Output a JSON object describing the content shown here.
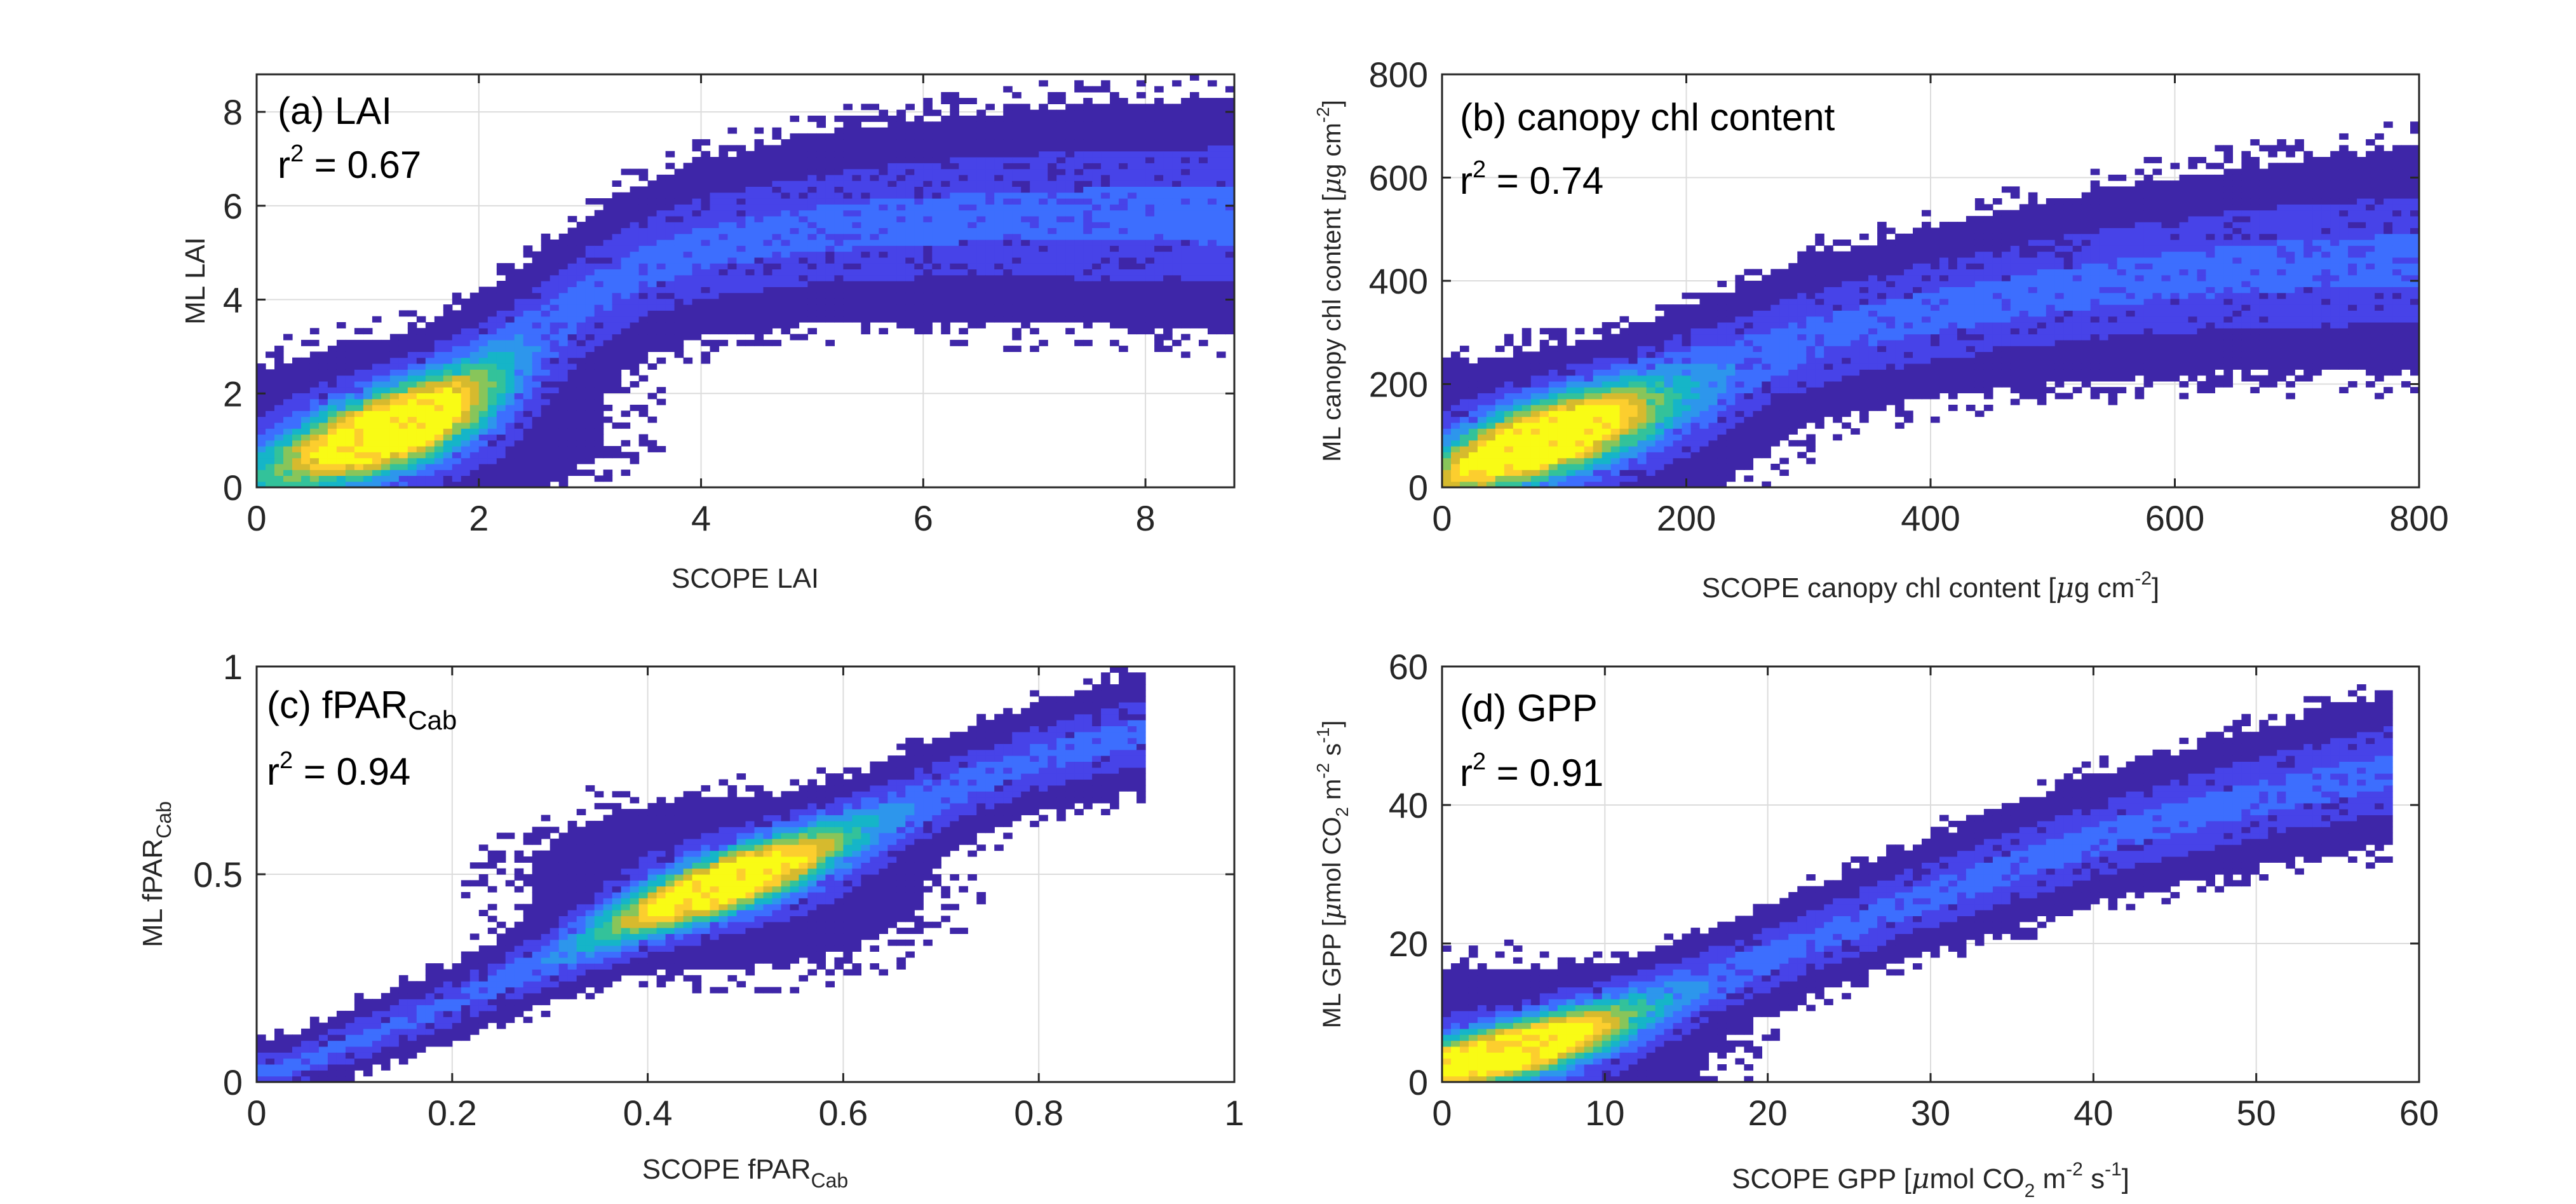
{
  "figure": {
    "background": "#ffffff"
  },
  "colormap": [
    "#3e26a8",
    "#4743e8",
    "#3d6efe",
    "#2d96ec",
    "#15b5c8",
    "#33c29a",
    "#88c55a",
    "#d6ba2e",
    "#fcce2e",
    "#f9fb15"
  ],
  "chart_data": [
    {
      "id": "a",
      "type": "heatmap",
      "title": "(a) LAI",
      "r2_label": "r",
      "r2_exp": "2",
      "r2_value": " = 0.67",
      "xlabel": "SCOPE LAI",
      "ylabel": "ML LAI",
      "xlim": [
        0,
        8.8
      ],
      "ylim": [
        0,
        8.8
      ],
      "xticks": [
        0,
        2,
        4,
        6,
        8
      ],
      "yticks": [
        0,
        2,
        4,
        6,
        8
      ],
      "xtick_labels": [
        "0",
        "2",
        "4",
        "6",
        "8"
      ],
      "ytick_labels": [
        "0",
        "2",
        "4",
        "6",
        "8"
      ],
      "grid": true,
      "trend": {
        "x": [
          0,
          0.5,
          1,
          1.5,
          2,
          2.5,
          3,
          3.5,
          4,
          5,
          6,
          7,
          8,
          8.8
        ],
        "y": [
          0,
          0.5,
          1.0,
          1.6,
          2.4,
          3.3,
          4.1,
          4.7,
          5.1,
          5.5,
          5.7,
          5.8,
          5.8,
          5.8
        ]
      },
      "density_peak": [
        1.3,
        1.2
      ],
      "spread": 0.7
    },
    {
      "id": "b",
      "type": "heatmap",
      "title": "(b) canopy chl content",
      "r2_label": "r",
      "r2_exp": "2",
      "r2_value": " = 0.74",
      "xlabel": "SCOPE canopy chl content [",
      "xlabel_mu": "μ",
      "xlabel_unit": "g cm",
      "xlabel_exp": "-2",
      "xlabel_end": "]",
      "ylabel": "ML canopy chl content [",
      "ylabel_mu": "μ",
      "ylabel_unit": "g cm",
      "ylabel_exp": "-2",
      "ylabel_end": "]",
      "xlim": [
        0,
        800
      ],
      "ylim": [
        0,
        800
      ],
      "xticks": [
        0,
        200,
        400,
        600,
        800
      ],
      "yticks": [
        0,
        200,
        400,
        600,
        800
      ],
      "xtick_labels": [
        "0",
        "200",
        "400",
        "600",
        "800"
      ],
      "ytick_labels": [
        "0",
        "200",
        "400",
        "600",
        "800"
      ],
      "grid": true,
      "trend": {
        "x": [
          0,
          50,
          100,
          150,
          200,
          300,
          400,
          500,
          600,
          700,
          800
        ],
        "y": [
          0,
          60,
          110,
          160,
          210,
          290,
          340,
          380,
          410,
          430,
          440
        ]
      },
      "density_peak": [
        80,
        90
      ],
      "spread": 60
    },
    {
      "id": "c",
      "type": "heatmap",
      "title": "(c) fPAR",
      "title_sub": "Cab",
      "r2_label": "r",
      "r2_exp": "2",
      "r2_value": " = 0.94",
      "xlabel": "SCOPE fPAR",
      "xlabel_sub": "Cab",
      "ylabel": "ML fPAR",
      "ylabel_sub": "Cab",
      "xlim": [
        0,
        1
      ],
      "ylim": [
        0,
        1
      ],
      "xticks": [
        0,
        0.2,
        0.4,
        0.6,
        0.8,
        1
      ],
      "yticks": [
        0,
        0.5,
        1
      ],
      "xtick_labels": [
        "0",
        "0.2",
        "0.4",
        "0.6",
        "0.8",
        "1"
      ],
      "ytick_labels": [
        "0",
        "0.5",
        "1"
      ],
      "grid": true,
      "trend": {
        "x": [
          0.03,
          0.1,
          0.2,
          0.3,
          0.4,
          0.5,
          0.6,
          0.7,
          0.8,
          0.9
        ],
        "y": [
          0.03,
          0.1,
          0.19,
          0.29,
          0.4,
          0.5,
          0.6,
          0.7,
          0.78,
          0.84
        ]
      },
      "density_peak": [
        0.48,
        0.48
      ],
      "spread": 0.04
    },
    {
      "id": "d",
      "type": "heatmap",
      "title": "(d) GPP",
      "r2_label": "r",
      "r2_exp": "2",
      "r2_value": " = 0.91",
      "xlabel": "SCOPE GPP [",
      "xlabel_mu": "μ",
      "xlabel_unit": "mol CO",
      "xlabel_sub": "2",
      "xlabel_unit2": " m",
      "xlabel_exp": "-2",
      "xlabel_unit3": " s",
      "xlabel_exp2": "-1",
      "xlabel_end": "]",
      "ylabel": "ML GPP [",
      "ylabel_mu": "μ",
      "ylabel_unit": "mol CO",
      "ylabel_sub": "2",
      "ylabel_unit2": " m",
      "ylabel_exp": "-2",
      "ylabel_unit3": " s",
      "ylabel_exp2": "-1",
      "ylabel_end": "]",
      "xlim": [
        0,
        60
      ],
      "ylim": [
        0,
        60
      ],
      "xticks": [
        0,
        10,
        20,
        30,
        40,
        50,
        60
      ],
      "yticks": [
        0,
        20,
        40,
        60
      ],
      "xtick_labels": [
        "0",
        "10",
        "20",
        "30",
        "40",
        "50",
        "60"
      ],
      "ytick_labels": [
        "0",
        "20",
        "40",
        "60"
      ],
      "grid": true,
      "trend": {
        "x": [
          0,
          5,
          10,
          20,
          30,
          40,
          50,
          58
        ],
        "y": [
          2,
          5,
          9,
          18,
          27,
          35,
          41,
          45
        ]
      },
      "density_peak": [
        4,
        4
      ],
      "spread": 3
    }
  ]
}
